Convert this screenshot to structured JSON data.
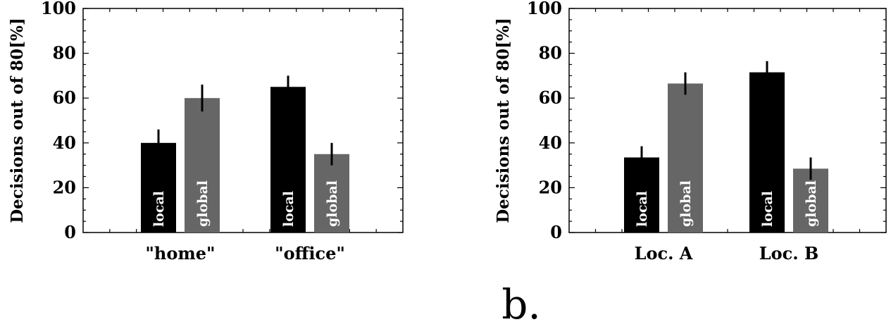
{
  "panel_label": "b.",
  "chart_data": [
    {
      "type": "bar",
      "categories": [
        "\"home\"",
        "\"office\""
      ],
      "series": [
        {
          "label": "local",
          "color": "#000000",
          "values": [
            40,
            65
          ],
          "errors": [
            6,
            5
          ]
        },
        {
          "label": "global",
          "color": "#666666",
          "values": [
            60,
            35
          ],
          "errors": [
            6,
            5
          ]
        }
      ],
      "ylabel": "Decisions out of 80[%]",
      "ylim": [
        0,
        100
      ],
      "yticks": [
        "0",
        "20",
        "40",
        "60",
        "80",
        "100"
      ],
      "xlabel": "",
      "title": ""
    },
    {
      "type": "bar",
      "categories": [
        "Loc. A",
        "Loc. B"
      ],
      "series": [
        {
          "label": "local",
          "color": "#000000",
          "values": [
            33.5,
            71.5
          ],
          "errors": [
            5,
            5
          ]
        },
        {
          "label": "global",
          "color": "#666666",
          "values": [
            66.5,
            28.5
          ],
          "errors": [
            5,
            5
          ]
        }
      ],
      "ylabel": "Decisions out of 80[%]",
      "ylim": [
        0,
        100
      ],
      "yticks": [
        "0",
        "20",
        "40",
        "60",
        "80",
        "100"
      ],
      "xlabel": "",
      "title": ""
    }
  ]
}
